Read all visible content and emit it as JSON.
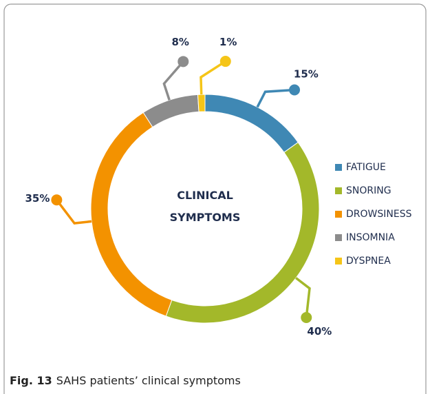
{
  "chart_data": {
    "type": "donut",
    "title": "CLINICAL SYMPTOMS",
    "categories": [
      "FATIGUE",
      "SNORING",
      "DROWSINESS",
      "INSOMNIA",
      "DYSPNEA"
    ],
    "values": [
      15,
      40,
      35,
      8,
      1
    ],
    "value_labels": [
      "15%",
      "40%",
      "35%",
      "8%",
      "1%"
    ],
    "colors": [
      "#3f88b4",
      "#a3b82a",
      "#f39200",
      "#8c8c8c",
      "#f5c518"
    ],
    "legend": "right"
  },
  "caption_label": "Fig. 13",
  "caption": "SAHS patients’ clinical symptoms"
}
